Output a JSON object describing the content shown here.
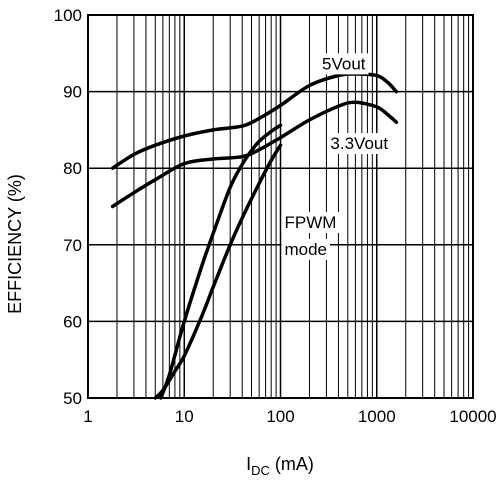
{
  "chart_data": {
    "type": "line",
    "title": "",
    "xlabel": {
      "main": "I",
      "subscript": "DC",
      "unit": " (mA)"
    },
    "ylabel": "EFFICIENCY (%)",
    "x_scale": "log",
    "xlim": [
      1,
      10000
    ],
    "ylim": [
      50,
      100
    ],
    "x_ticks": [
      1,
      10,
      100,
      1000,
      10000
    ],
    "x_tick_labels": [
      "1",
      "10",
      "100",
      "1000",
      "10000"
    ],
    "y_ticks": [
      50,
      60,
      70,
      80,
      90,
      100
    ],
    "y_tick_labels": [
      "50",
      "60",
      "70",
      "80",
      "90",
      "100"
    ],
    "grid": true,
    "legend": "none",
    "line_color": "#000000",
    "series": [
      {
        "name": "5Vout",
        "x": [
          1.8,
          3,
          5,
          10,
          20,
          40,
          60,
          100,
          200,
          400,
          600,
          1000,
          1300,
          1600
        ],
        "y": [
          80,
          81.8,
          83,
          84.2,
          85,
          85.5,
          86.5,
          88.2,
          90.8,
          92.1,
          92.3,
          92.1,
          91.2,
          90
        ]
      },
      {
        "name": "3.3Vout",
        "x": [
          1.8,
          3,
          5,
          10,
          20,
          40,
          60,
          100,
          200,
          400,
          600,
          1000,
          1300,
          1600
        ],
        "y": [
          75,
          76.8,
          78.5,
          80.6,
          81.2,
          81.5,
          82.4,
          84,
          86.3,
          88.1,
          88.6,
          88,
          87,
          86
        ]
      },
      {
        "name": "5Vout FPWM",
        "x": [
          5.7,
          7,
          10,
          15,
          20,
          30,
          40,
          50,
          60,
          80,
          100
        ],
        "y": [
          50,
          53,
          60,
          67,
          71.5,
          77.5,
          80.5,
          82.3,
          83.5,
          84.8,
          85.6
        ]
      },
      {
        "name": "3.3Vout FPWM",
        "x": [
          5,
          6,
          8,
          10,
          15,
          20,
          30,
          40,
          60,
          80,
          100
        ],
        "y": [
          50,
          51,
          53.5,
          55.5,
          60.5,
          64.5,
          70,
          73.5,
          78,
          81,
          83
        ]
      }
    ],
    "annotations": [
      {
        "text": "5Vout",
        "x": 270,
        "y": 92.9
      },
      {
        "text": "3.3Vout",
        "x": 330,
        "y": 82.5
      },
      {
        "text": "FPWM",
        "x": 110,
        "y": 72.2
      },
      {
        "text": "mode",
        "x": 110,
        "y": 68.7
      }
    ]
  }
}
